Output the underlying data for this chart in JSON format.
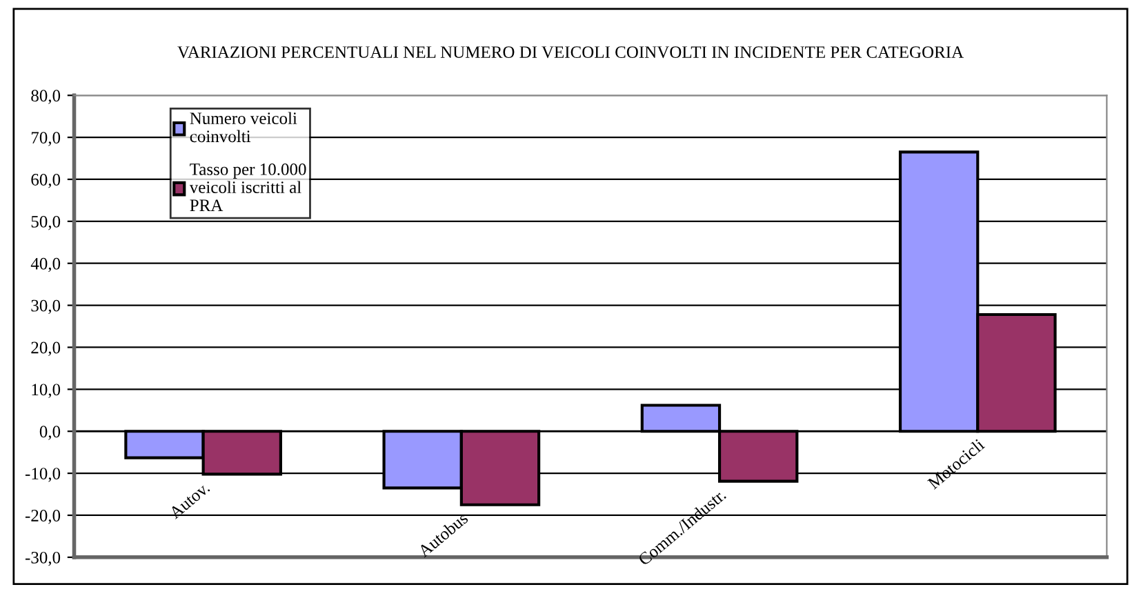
{
  "chart_data": {
    "type": "bar",
    "title": "VARIAZIONI PERCENTUALI NEL NUMERO DI VEICOLI COINVOLTI IN INCIDENTE PER CATEGORIA",
    "categories": [
      "Autov.",
      "Autobus",
      "Comm./Industr.",
      "Motocicli"
    ],
    "series": [
      {
        "name": "Numero veicoli coinvolti",
        "color": "#9999ff",
        "values": [
          -6.3,
          -13.5,
          6.2,
          66.5
        ]
      },
      {
        "name": "Tasso per 10.000 veicoli iscritti al PRA",
        "color": "#993366",
        "values": [
          -10.2,
          -17.5,
          -11.9,
          27.8
        ]
      }
    ],
    "ylim": [
      -30,
      80
    ],
    "yticks": [
      {
        "value": -30,
        "label": "-30,0"
      },
      {
        "value": -20,
        "label": "-20,0"
      },
      {
        "value": -10,
        "label": "-10,0"
      },
      {
        "value": 0,
        "label": "0,0"
      },
      {
        "value": 10,
        "label": "10,0"
      },
      {
        "value": 20,
        "label": "20,0"
      },
      {
        "value": 30,
        "label": "30,0"
      },
      {
        "value": 40,
        "label": "40,0"
      },
      {
        "value": 50,
        "label": "50,0"
      },
      {
        "value": 60,
        "label": "60,0"
      },
      {
        "value": 70,
        "label": "70,0"
      },
      {
        "value": 80,
        "label": "80,0"
      }
    ],
    "grid": "y",
    "legend": "top left"
  }
}
